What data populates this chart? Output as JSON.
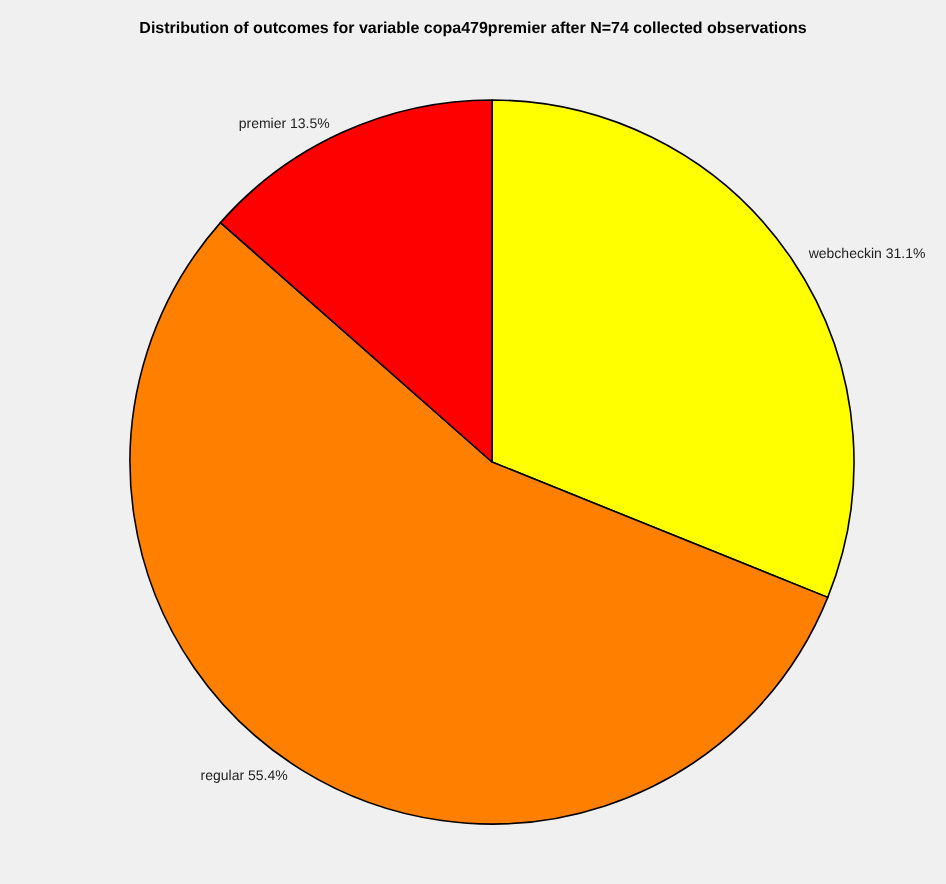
{
  "chart_data": {
    "type": "pie",
    "title": "Distribution of outcomes for variable copa479premier after N=74 collected observations",
    "categories": [
      "webcheckin",
      "regular",
      "premier"
    ],
    "values": [
      31.1,
      55.4,
      13.5
    ],
    "value_labels": [
      "31.1%",
      "55.4%",
      "13.5%"
    ],
    "colors": [
      "#ffff00",
      "#ff8000",
      "#ff0000"
    ],
    "legend": false
  }
}
